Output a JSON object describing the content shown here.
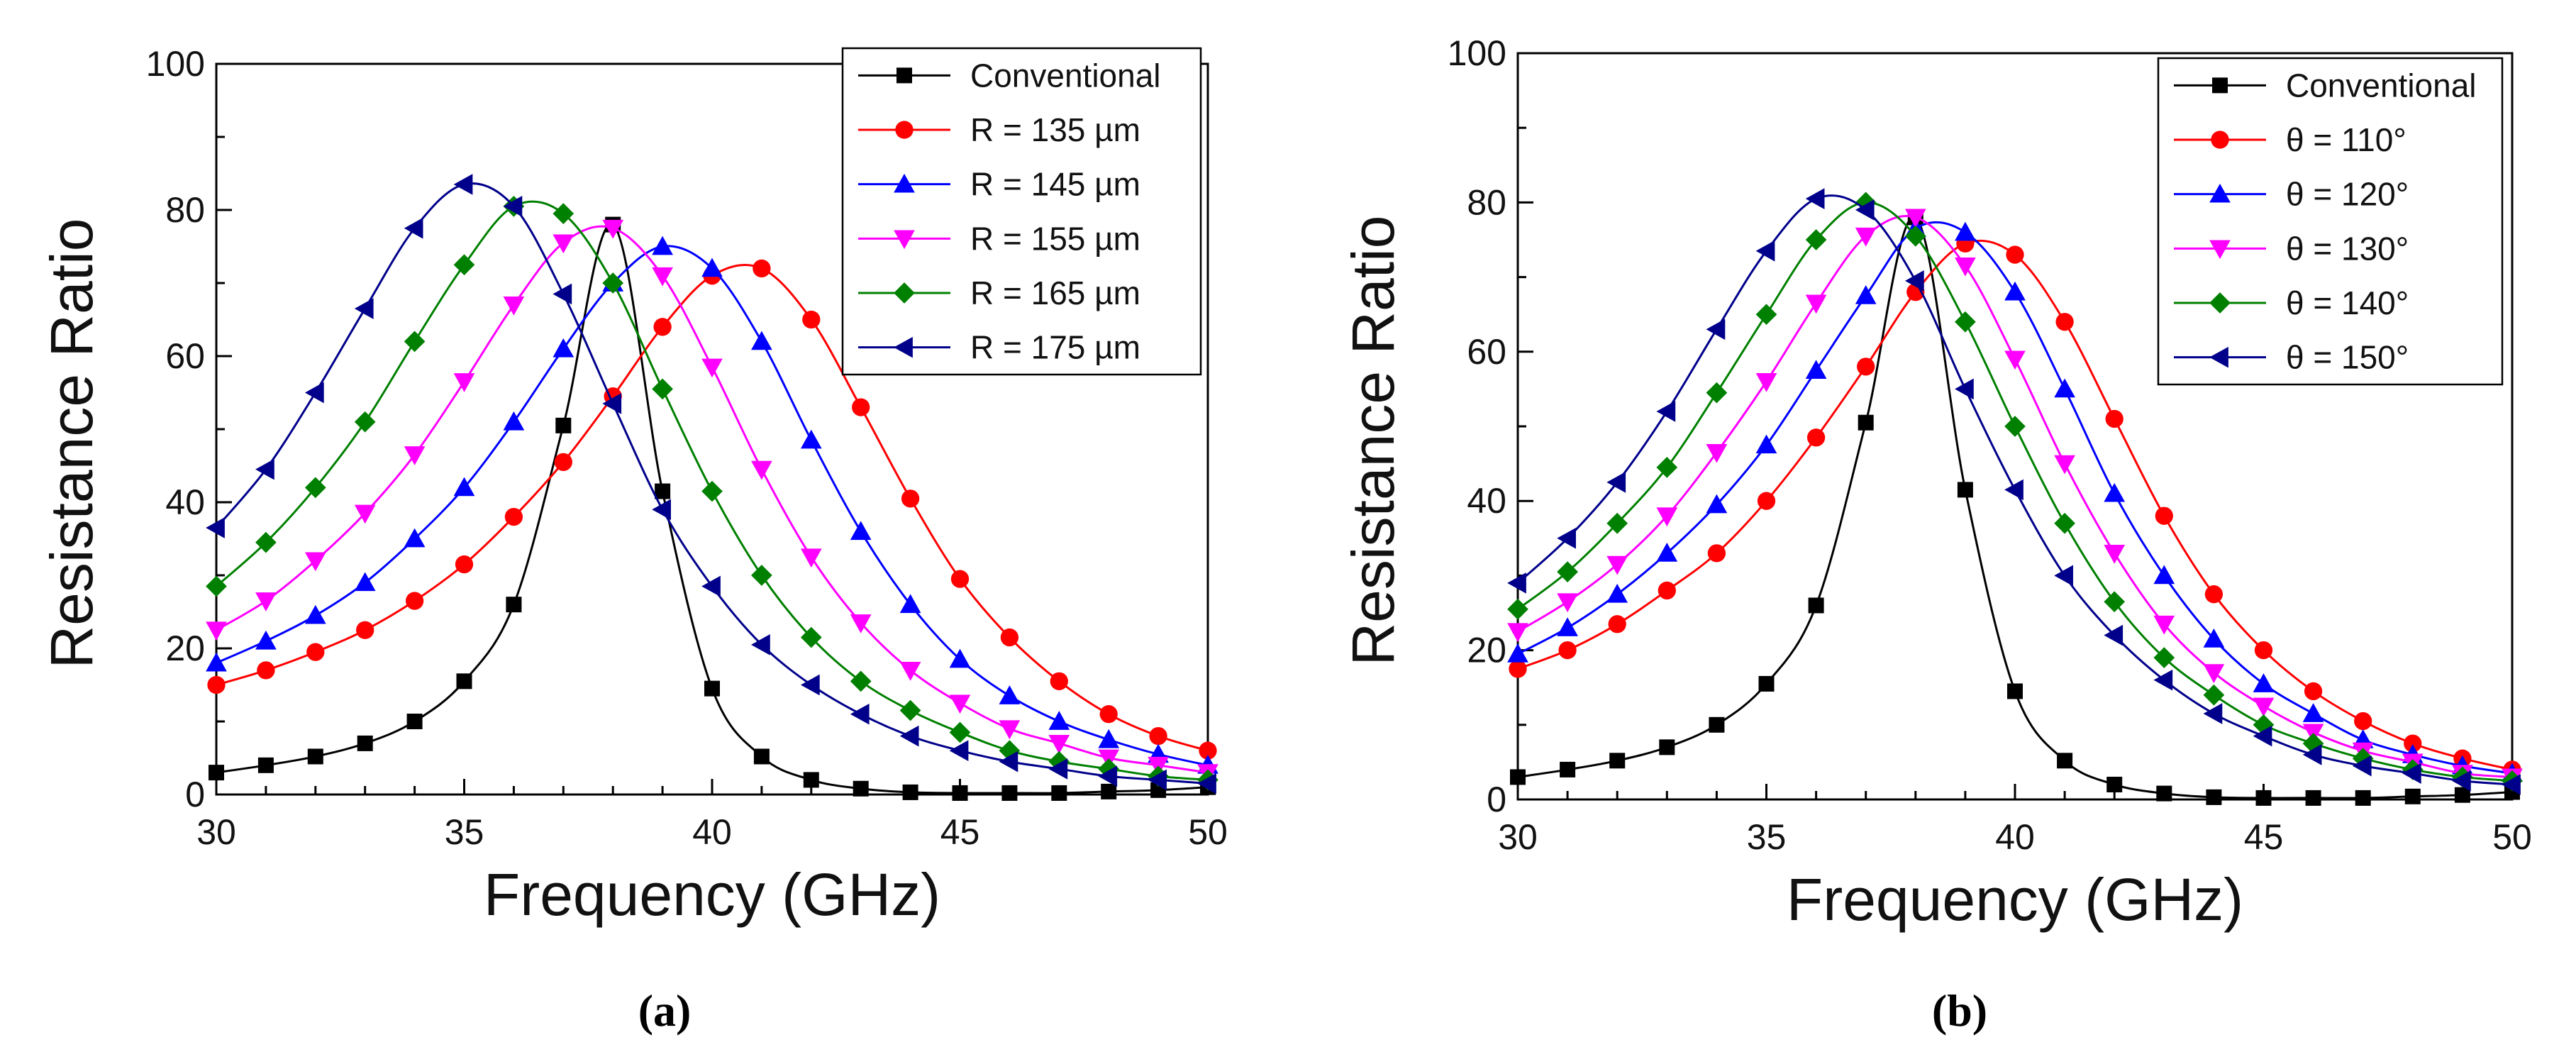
{
  "figure": {
    "panels": [
      {
        "caption": "(a)"
      },
      {
        "caption": "(b)"
      }
    ]
  },
  "chart_data": [
    {
      "type": "line",
      "panel": "(a)",
      "xlabel": "Frequency (GHz)",
      "ylabel": "Resistance Ratio",
      "xlim": [
        30,
        50
      ],
      "ylim": [
        0,
        100
      ],
      "xticks": [
        30,
        35,
        40,
        45,
        50
      ],
      "yticks": [
        0,
        20,
        40,
        60,
        80,
        100
      ],
      "minor_xticks": true,
      "minor_yticks": true,
      "grid": false,
      "legend_position": "top-right",
      "x": [
        30,
        31,
        32,
        33,
        34,
        35,
        36,
        37,
        38,
        39,
        40,
        41,
        42,
        43,
        44,
        45,
        46,
        47,
        48,
        49,
        50
      ],
      "series": [
        {
          "name": "Conventional",
          "color": "#000000",
          "marker": "square",
          "values": [
            3,
            4,
            5.2,
            7,
            10,
            15.5,
            26,
            50.5,
            78,
            41.5,
            14.5,
            5.2,
            2,
            0.8,
            0.3,
            0.2,
            0.2,
            0.2,
            0.4,
            0.6,
            1
          ]
        },
        {
          "name": "R = 135 µm",
          "color": "#ff0000",
          "marker": "circle",
          "values": [
            15,
            17,
            19.5,
            22.5,
            26.5,
            31.5,
            38,
            45.5,
            54.5,
            64,
            71,
            72,
            65,
            53,
            40.5,
            29.5,
            21.5,
            15.5,
            11,
            8,
            6
          ]
        },
        {
          "name": "R = 145 µm",
          "color": "#0000ff",
          "marker": "triangle-up",
          "values": [
            18,
            21,
            24.5,
            29,
            35,
            42,
            51,
            61,
            70,
            75,
            72,
            62,
            48.5,
            36,
            26,
            18.5,
            13.5,
            10,
            7.5,
            5.5,
            4
          ]
        },
        {
          "name": "R = 155 µm",
          "color": "#ff00ff",
          "marker": "triangle-down",
          "values": [
            22.5,
            26.5,
            32,
            38.5,
            46.5,
            56.5,
            67,
            75.5,
            77.5,
            71,
            58.5,
            44.5,
            32.5,
            23.5,
            17,
            12.5,
            9,
            7,
            5,
            4,
            3
          ]
        },
        {
          "name": "R = 165 µm",
          "color": "#008000",
          "marker": "diamond",
          "values": [
            28.5,
            34.5,
            42,
            51,
            62,
            72.5,
            80.5,
            79.5,
            70,
            55.5,
            41.5,
            30,
            21.5,
            15.5,
            11.5,
            8.5,
            6,
            4.5,
            3.5,
            2.5,
            2
          ]
        },
        {
          "name": "R = 175 µm",
          "color": "#00008b",
          "marker": "triangle-left",
          "values": [
            36.5,
            44.5,
            55,
            66.5,
            77.5,
            83.5,
            80.5,
            68.5,
            53.5,
            39,
            28.5,
            20.5,
            15,
            11,
            8,
            6,
            4.5,
            3.5,
            2.5,
            2,
            1.5
          ]
        }
      ]
    },
    {
      "type": "line",
      "panel": "(b)",
      "xlabel": "Frequency (GHz)",
      "ylabel": "Resistance Ratio",
      "xlim": [
        30,
        50
      ],
      "ylim": [
        0,
        100
      ],
      "xticks": [
        30,
        35,
        40,
        45,
        50
      ],
      "yticks": [
        0,
        20,
        40,
        60,
        80,
        100
      ],
      "minor_xticks": true,
      "minor_yticks": true,
      "grid": false,
      "legend_position": "top-right",
      "x": [
        30,
        31,
        32,
        33,
        34,
        35,
        36,
        37,
        38,
        39,
        40,
        41,
        42,
        43,
        44,
        45,
        46,
        47,
        48,
        49,
        50
      ],
      "series": [
        {
          "name": "Conventional",
          "color": "#000000",
          "marker": "square",
          "values": [
            3,
            4,
            5.2,
            7,
            10,
            15.5,
            26,
            50.5,
            78,
            41.5,
            14.5,
            5.2,
            2,
            0.8,
            0.3,
            0.2,
            0.2,
            0.2,
            0.4,
            0.6,
            1
          ]
        },
        {
          "name": "θ = 110°",
          "color": "#ff0000",
          "marker": "circle",
          "values": [
            17.5,
            20,
            23.5,
            28,
            33,
            40,
            48.5,
            58,
            68,
            74.5,
            73,
            64,
            51,
            38,
            27.5,
            20,
            14.5,
            10.5,
            7.5,
            5.5,
            4
          ]
        },
        {
          "name": "θ = 120°",
          "color": "#0000ff",
          "marker": "triangle-up",
          "values": [
            19.5,
            23,
            27.5,
            33,
            39.5,
            47.5,
            57.5,
            67.5,
            76.5,
            76,
            68,
            55,
            41,
            30,
            21.5,
            15.5,
            11.5,
            8,
            6,
            4.5,
            3.5
          ]
        },
        {
          "name": "θ = 130°",
          "color": "#ff00ff",
          "marker": "triangle-down",
          "values": [
            22.5,
            26.5,
            31.5,
            38,
            46.5,
            56,
            66.5,
            75.5,
            78,
            71.5,
            59,
            45,
            33,
            23.5,
            17,
            12.5,
            9,
            6.5,
            5,
            3.5,
            3
          ]
        },
        {
          "name": "θ = 140°",
          "color": "#008000",
          "marker": "diamond",
          "values": [
            25.5,
            30.5,
            37,
            44.5,
            54.5,
            65,
            75,
            80,
            75.5,
            64,
            50,
            37,
            26.5,
            19,
            14,
            10,
            7.5,
            5.5,
            4,
            3,
            2.5
          ]
        },
        {
          "name": "θ = 150°",
          "color": "#00008b",
          "marker": "triangle-left",
          "values": [
            29,
            35,
            42.5,
            52,
            63,
            73.5,
            80.5,
            79,
            69.5,
            55,
            41.5,
            30,
            22,
            16,
            11.5,
            8.5,
            6,
            4.5,
            3.5,
            2.5,
            2
          ]
        }
      ]
    }
  ]
}
